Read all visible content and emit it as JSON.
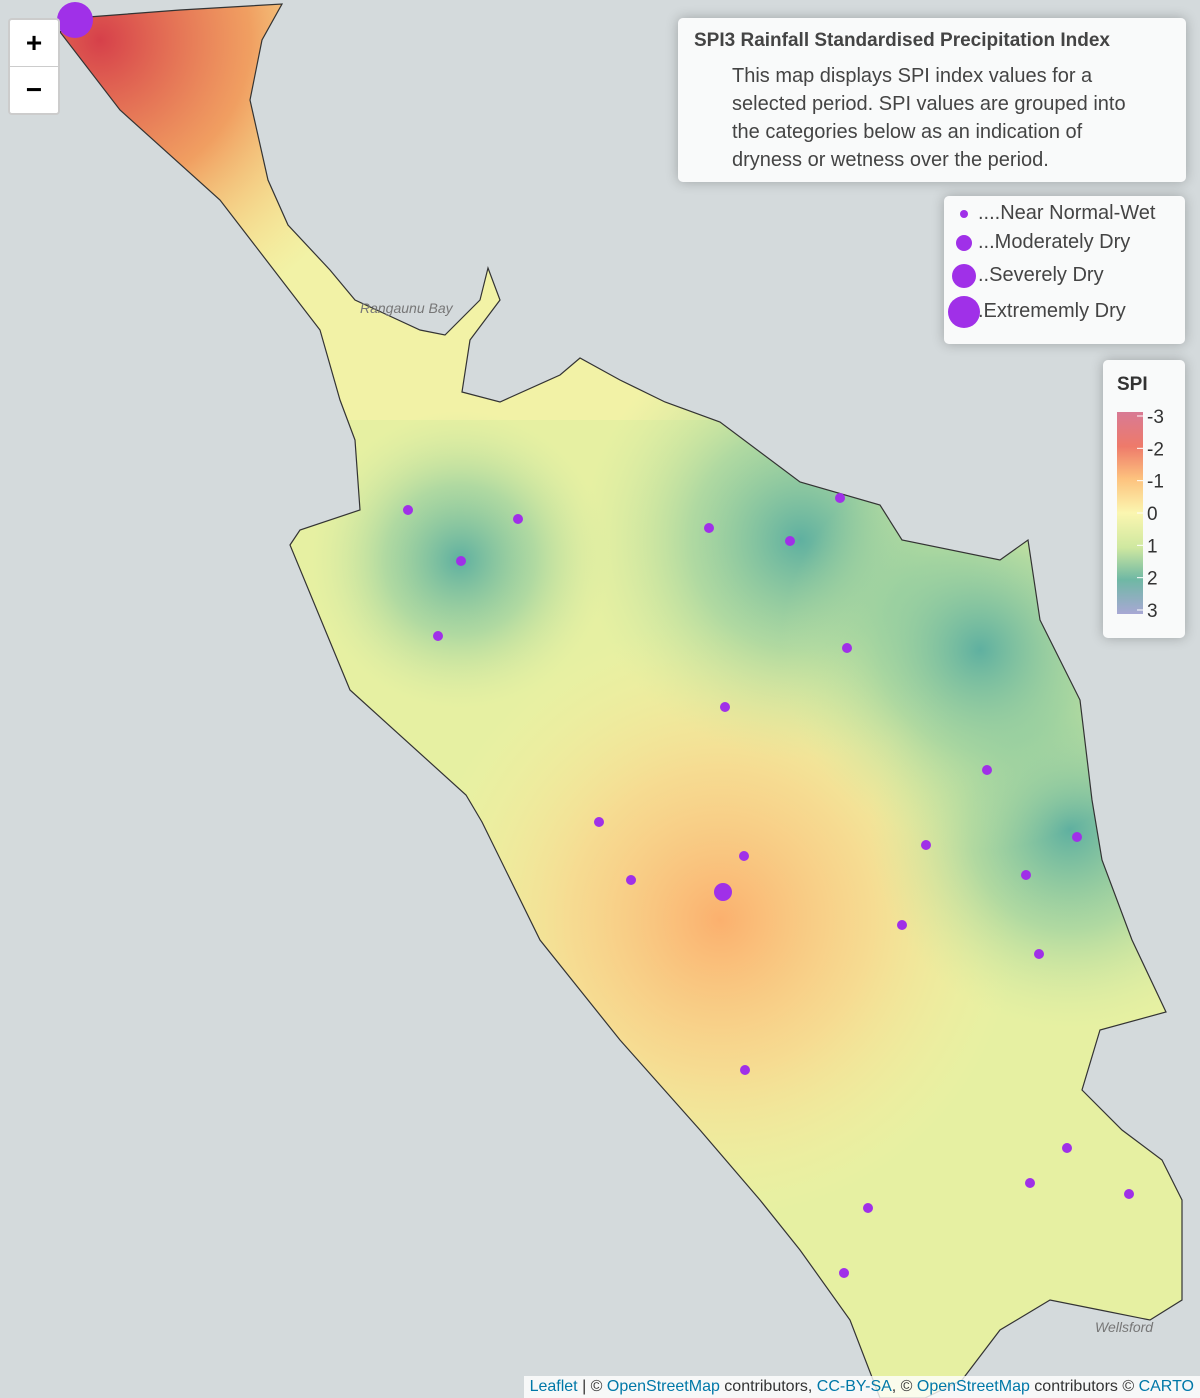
{
  "zoom": {
    "in": "+",
    "out": "−"
  },
  "info": {
    "title": "SPI3 Rainfall Standardised Precipitation Index",
    "text": "This map displays SPI index values for a selected period. SPI values are grouped into the categories below as an indication of dryness or wetness over the period."
  },
  "size_legend": [
    "....Near Normal-Wet",
    "...Moderately Dry",
    "..Severely Dry",
    ".Extrememly Dry"
  ],
  "spi_legend": {
    "title": "SPI",
    "ticks": [
      -3,
      -2,
      -1,
      0,
      1,
      2,
      3
    ]
  },
  "map_labels": [
    "Rangaunu Bay",
    "Wellsford"
  ],
  "attribution": [
    "Leaflet",
    " | © ",
    "OpenStreetMap",
    " contributors, ",
    "CC-BY-SA",
    ", © ",
    "OpenStreetMap",
    " contributors © ",
    "CARTO"
  ]
}
